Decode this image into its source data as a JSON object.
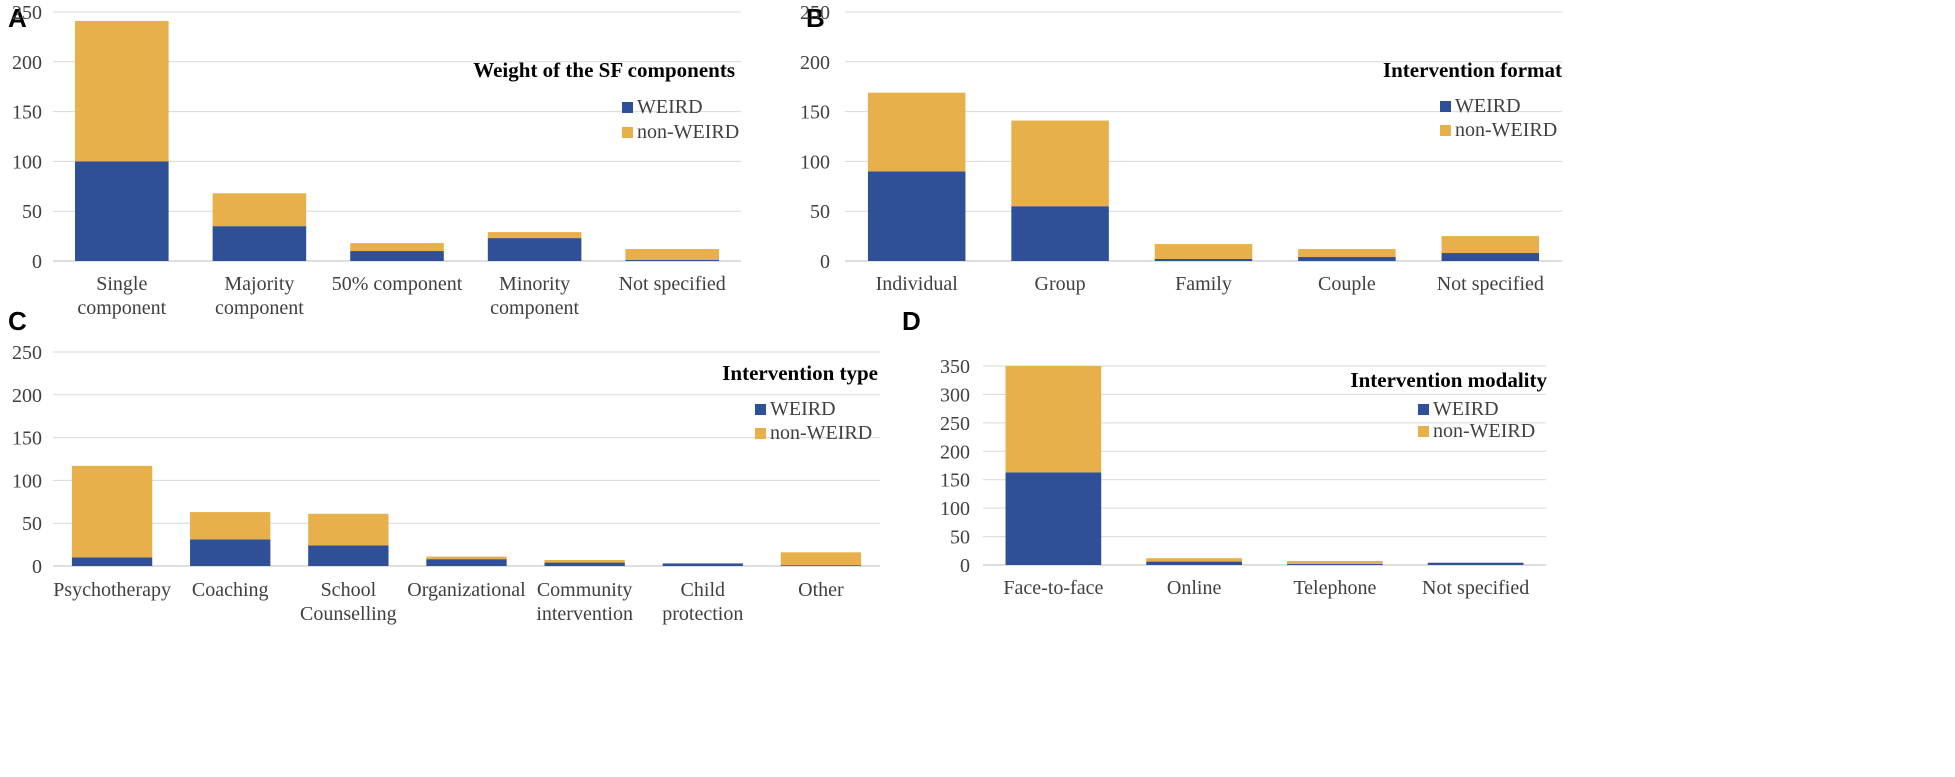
{
  "colors": {
    "weird": "#2f5096",
    "non_weird": "#e8b04a"
  },
  "chart_data": [
    {
      "panel": "A",
      "type": "bar",
      "stacked": true,
      "title": "Weight of the SF components",
      "categories": [
        [
          "Single",
          "component"
        ],
        [
          "Majority",
          "component"
        ],
        [
          "50% component"
        ],
        [
          "Minority",
          "component"
        ],
        [
          "Not specified"
        ]
      ],
      "series": [
        {
          "name": "WEIRD",
          "values": [
            100,
            35,
            10,
            23,
            1
          ]
        },
        {
          "name": "non-WEIRD",
          "values": [
            141,
            33,
            8,
            6,
            11
          ]
        }
      ],
      "ylim": [
        0,
        250
      ],
      "yticks": [
        0,
        50,
        100,
        150,
        200,
        250
      ],
      "grid": true,
      "legend": "top-right"
    },
    {
      "panel": "B",
      "type": "bar",
      "stacked": true,
      "title": "Intervention format",
      "categories": [
        [
          "Individual"
        ],
        [
          "Group"
        ],
        [
          "Family"
        ],
        [
          "Couple"
        ],
        [
          "Not specified"
        ]
      ],
      "series": [
        {
          "name": "WEIRD",
          "values": [
            90,
            55,
            2,
            4,
            8
          ]
        },
        {
          "name": "non-WEIRD",
          "values": [
            79,
            86,
            15,
            8,
            17
          ]
        }
      ],
      "ylim": [
        0,
        250
      ],
      "yticks": [
        0,
        50,
        100,
        150,
        200,
        250
      ],
      "grid": true,
      "legend": "top-right"
    },
    {
      "panel": "C",
      "type": "bar",
      "stacked": true,
      "title": "Intervention type",
      "categories": [
        [
          "Psychotherapy"
        ],
        [
          "Coaching"
        ],
        [
          "School",
          "Counselling"
        ],
        [
          "Organizational"
        ],
        [
          "Community",
          "intervention"
        ],
        [
          "Child",
          "protection"
        ],
        [
          "Other"
        ]
      ],
      "series": [
        {
          "name": "WEIRD",
          "values": [
            10,
            31,
            24,
            8,
            4,
            3,
            1
          ]
        },
        {
          "name": "non-WEIRD",
          "values": [
            107,
            32,
            37,
            3,
            3,
            0,
            15
          ]
        }
      ],
      "ylim": [
        0,
        250
      ],
      "yticks": [
        0,
        50,
        100,
        150,
        200,
        250
      ],
      "grid": true,
      "legend": "top-right"
    },
    {
      "panel": "D",
      "type": "bar",
      "stacked": true,
      "title": "Intervention modality",
      "categories": [
        [
          "Face-to-face"
        ],
        [
          "Online"
        ],
        [
          "Telephone"
        ],
        [
          "Not specified"
        ]
      ],
      "series": [
        {
          "name": "WEIRD",
          "values": [
            163,
            6,
            2,
            4
          ]
        },
        {
          "name": "non-WEIRD",
          "values": [
            187,
            6,
            5,
            0
          ]
        }
      ],
      "ylim": [
        0,
        350
      ],
      "yticks": [
        0,
        50,
        100,
        150,
        200,
        250,
        300,
        350
      ],
      "grid": true,
      "legend": "top-right"
    }
  ]
}
